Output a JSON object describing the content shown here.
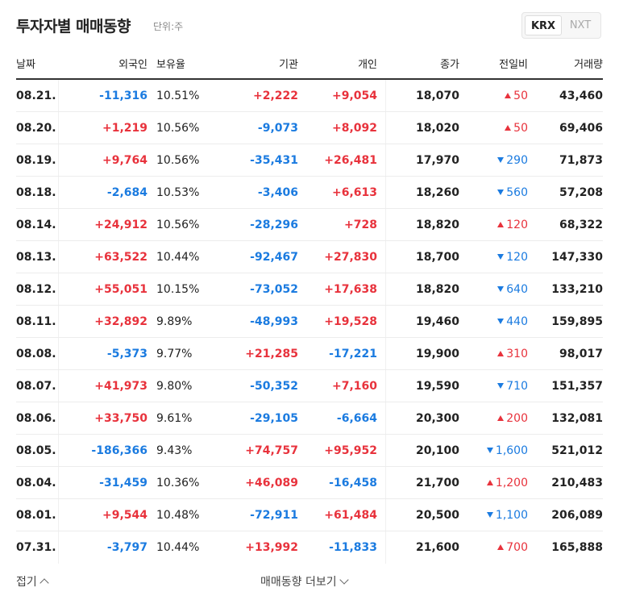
{
  "header": {
    "title": "투자자별 매매동향",
    "unit": "단위:주",
    "tabs": [
      "KRX",
      "NXT"
    ]
  },
  "table": {
    "columns": [
      "날짜",
      "외국인",
      "보유율",
      "기관",
      "개인",
      "종가",
      "전일비",
      "거래량"
    ],
    "rows": [
      {
        "date": "08.21.",
        "foreign": "-11,316",
        "holding": "10.51%",
        "institution": "+2,222",
        "individual": "+9,054",
        "close": "18,070",
        "change": {
          "direction": "up",
          "value": "50"
        },
        "volume": "43,460"
      },
      {
        "date": "08.20.",
        "foreign": "+1,219",
        "holding": "10.56%",
        "institution": "-9,073",
        "individual": "+8,092",
        "close": "18,020",
        "change": {
          "direction": "up",
          "value": "50"
        },
        "volume": "69,406"
      },
      {
        "date": "08.19.",
        "foreign": "+9,764",
        "holding": "10.56%",
        "institution": "-35,431",
        "individual": "+26,481",
        "close": "17,970",
        "change": {
          "direction": "down",
          "value": "290"
        },
        "volume": "71,873"
      },
      {
        "date": "08.18.",
        "foreign": "-2,684",
        "holding": "10.53%",
        "institution": "-3,406",
        "individual": "+6,613",
        "close": "18,260",
        "change": {
          "direction": "down",
          "value": "560"
        },
        "volume": "57,208"
      },
      {
        "date": "08.14.",
        "foreign": "+24,912",
        "holding": "10.56%",
        "institution": "-28,296",
        "individual": "+728",
        "close": "18,820",
        "change": {
          "direction": "up",
          "value": "120"
        },
        "volume": "68,322"
      },
      {
        "date": "08.13.",
        "foreign": "+63,522",
        "holding": "10.44%",
        "institution": "-92,467",
        "individual": "+27,830",
        "close": "18,700",
        "change": {
          "direction": "down",
          "value": "120"
        },
        "volume": "147,330"
      },
      {
        "date": "08.12.",
        "foreign": "+55,051",
        "holding": "10.15%",
        "institution": "-73,052",
        "individual": "+17,638",
        "close": "18,820",
        "change": {
          "direction": "down",
          "value": "640"
        },
        "volume": "133,210"
      },
      {
        "date": "08.11.",
        "foreign": "+32,892",
        "holding": "9.89%",
        "institution": "-48,993",
        "individual": "+19,528",
        "close": "19,460",
        "change": {
          "direction": "down",
          "value": "440"
        },
        "volume": "159,895"
      },
      {
        "date": "08.08.",
        "foreign": "-5,373",
        "holding": "9.77%",
        "institution": "+21,285",
        "individual": "-17,221",
        "close": "19,900",
        "change": {
          "direction": "up",
          "value": "310"
        },
        "volume": "98,017"
      },
      {
        "date": "08.07.",
        "foreign": "+41,973",
        "holding": "9.80%",
        "institution": "-50,352",
        "individual": "+7,160",
        "close": "19,590",
        "change": {
          "direction": "down",
          "value": "710"
        },
        "volume": "151,357"
      },
      {
        "date": "08.06.",
        "foreign": "+33,750",
        "holding": "9.61%",
        "institution": "-29,105",
        "individual": "-6,664",
        "close": "20,300",
        "change": {
          "direction": "up",
          "value": "200"
        },
        "volume": "132,081"
      },
      {
        "date": "08.05.",
        "foreign": "-186,366",
        "holding": "9.43%",
        "institution": "+74,757",
        "individual": "+95,952",
        "close": "20,100",
        "change": {
          "direction": "down",
          "value": "1,600"
        },
        "volume": "521,012"
      },
      {
        "date": "08.04.",
        "foreign": "-31,459",
        "holding": "10.36%",
        "institution": "+46,089",
        "individual": "-16,458",
        "close": "21,700",
        "change": {
          "direction": "up",
          "value": "1,200"
        },
        "volume": "210,483"
      },
      {
        "date": "08.01.",
        "foreign": "+9,544",
        "holding": "10.48%",
        "institution": "-72,911",
        "individual": "+61,484",
        "close": "20,500",
        "change": {
          "direction": "down",
          "value": "1,100"
        },
        "volume": "206,089"
      },
      {
        "date": "07.31.",
        "foreign": "-3,797",
        "holding": "10.44%",
        "institution": "+13,992",
        "individual": "-11,833",
        "close": "21,600",
        "change": {
          "direction": "up",
          "value": "700"
        },
        "volume": "165,888"
      }
    ]
  },
  "footer": {
    "fold": "접기",
    "more": "매매동향 더보기"
  }
}
